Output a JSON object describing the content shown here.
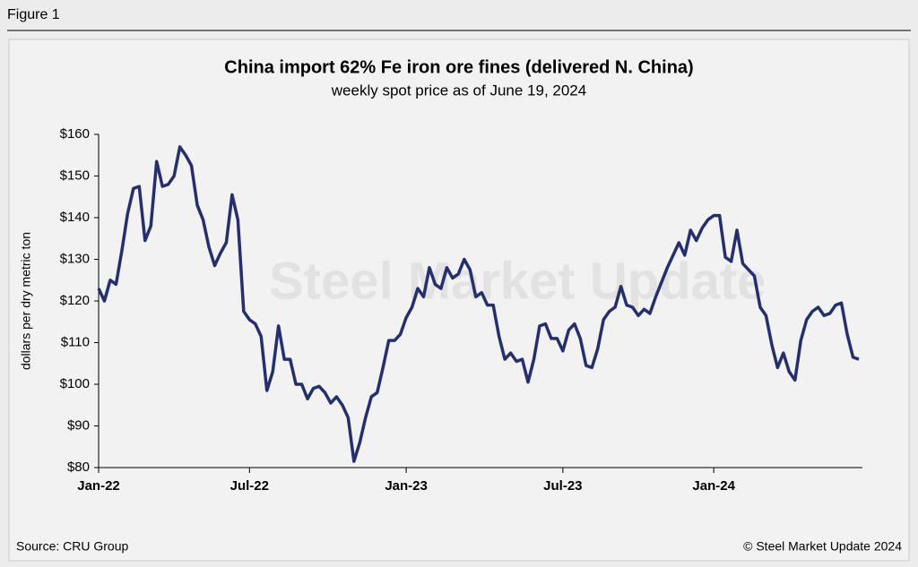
{
  "figure_label": "Figure 1",
  "source": "Source: CRU Group",
  "copyright": "© Steel Market Update 2024",
  "watermark": "Steel Market Update",
  "chart_data": {
    "type": "line",
    "title": "China import 62% Fe iron ore fines (delivered N. China)",
    "subtitle": "weekly spot price as of June 19, 2024",
    "y_label": "dollars per dry metric ton",
    "categories": [
      "Jan-22",
      null,
      null,
      null,
      null,
      null,
      null,
      null,
      null,
      null,
      null,
      null,
      null,
      null,
      null,
      null,
      null,
      null,
      null,
      null,
      null,
      null,
      null,
      null,
      null,
      null,
      "Jul-22",
      null,
      null,
      null,
      null,
      null,
      null,
      null,
      null,
      null,
      null,
      null,
      null,
      null,
      null,
      null,
      null,
      null,
      null,
      null,
      null,
      null,
      null,
      null,
      null,
      null,
      null,
      "Jan-23",
      null,
      null,
      null,
      null,
      null,
      null,
      null,
      null,
      null,
      null,
      null,
      null,
      null,
      null,
      null,
      null,
      null,
      null,
      null,
      null,
      null,
      null,
      null,
      null,
      null,
      null,
      "Jul-23",
      null,
      null,
      null,
      null,
      null,
      null,
      null,
      null,
      null,
      null,
      null,
      null,
      null,
      null,
      null,
      null,
      null,
      null,
      null,
      null,
      null,
      null,
      null,
      null,
      null,
      "Jan-24",
      null,
      null,
      null,
      null,
      null,
      null,
      null,
      null,
      null,
      null,
      null,
      null,
      null,
      null,
      null,
      null,
      null,
      null,
      null,
      null,
      null,
      null,
      null,
      null,
      null
    ],
    "series": [
      {
        "name": "Iron ore fines",
        "color": "#262f6e",
        "values": [
          123,
          120,
          125,
          124,
          132,
          141,
          147,
          147.5,
          134.5,
          138,
          153.5,
          147.5,
          148,
          150,
          157,
          155,
          152.5,
          143,
          139.5,
          133,
          128.5,
          131.5,
          134,
          145.5,
          139.5,
          117.5,
          115.5,
          114.5,
          111.5,
          98.5,
          103,
          114,
          106,
          106,
          100,
          100,
          96.5,
          99,
          99.5,
          98,
          95.5,
          97,
          95,
          92,
          81.5,
          86,
          92,
          97,
          98,
          104,
          110.5,
          110.5,
          112,
          116,
          118.5,
          123,
          121,
          128,
          124,
          123,
          128,
          125.5,
          126.5,
          130,
          127.5,
          121,
          122,
          119,
          119,
          111.5,
          106,
          107.5,
          105.5,
          106,
          100.5,
          106,
          114,
          114.5,
          111,
          111,
          108,
          113,
          114.5,
          111,
          104.5,
          104,
          108.5,
          115.5,
          117.5,
          118.5,
          123.5,
          119,
          118.5,
          116.5,
          118,
          117,
          121,
          124.5,
          128,
          131,
          134,
          131,
          137,
          134.5,
          137.5,
          139.5,
          140.5,
          140.5,
          130.5,
          129.5,
          137,
          129,
          127.5,
          126,
          118.5,
          116.5,
          109.5,
          104,
          107.5,
          103,
          101,
          110.5,
          115.5,
          117.5,
          118.5,
          116.5,
          117,
          119,
          119.5,
          112,
          106.5,
          106
        ]
      }
    ],
    "ylim": [
      80,
      160
    ],
    "yticks": [
      {
        "value": 80,
        "label": "$80"
      },
      {
        "value": 90,
        "label": "$90"
      },
      {
        "value": 100,
        "label": "$100"
      },
      {
        "value": 110,
        "label": "$110"
      },
      {
        "value": 120,
        "label": "$120"
      },
      {
        "value": 130,
        "label": "$130"
      },
      {
        "value": 140,
        "label": "$140"
      },
      {
        "value": 150,
        "label": "$150"
      },
      {
        "value": 160,
        "label": "$160"
      }
    ],
    "grid": false
  }
}
